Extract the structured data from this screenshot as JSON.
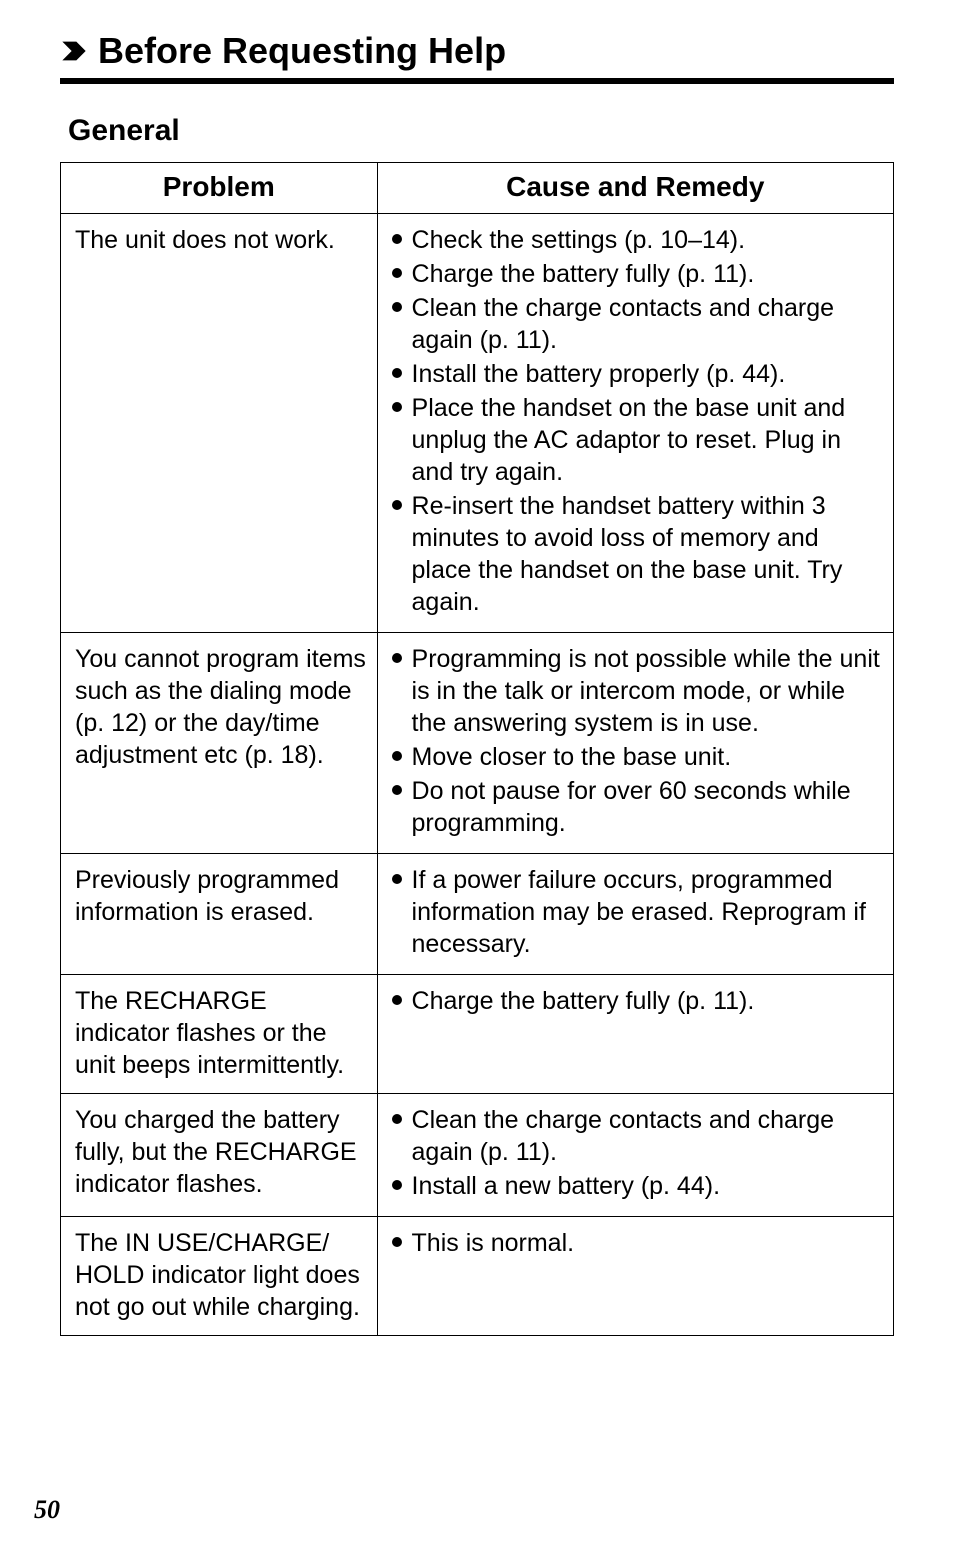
{
  "title": "Before Requesting Help",
  "section_heading": "General",
  "table": {
    "headers": {
      "problem": "Problem",
      "remedy": "Cause and Remedy"
    },
    "rows": [
      {
        "problem": "The unit does not work.",
        "remedies": [
          "Check the settings (p. 10–14).",
          "Charge the battery fully (p. 11).",
          "Clean the charge contacts and charge again (p. 11).",
          "Install the battery properly (p. 44).",
          "Place the handset on the base unit and unplug the AC adaptor to reset. Plug in and try again.",
          "Re-insert the handset battery within 3 minutes to avoid loss of memory and place the handset on the base unit. Try again."
        ]
      },
      {
        "problem": "You cannot program items such as the dialing mode (p. 12) or the day/time adjustment etc (p. 18).",
        "remedies": [
          "Programming is not possible while the unit is in the talk or intercom mode, or while the answering system is in use.",
          "Move closer to the base unit.",
          "Do not pause for over 60 seconds while programming."
        ]
      },
      {
        "problem": "Previously programmed information is erased.",
        "remedies": [
          "If a power failure occurs, programmed information may be erased. Reprogram if necessary."
        ]
      },
      {
        "problem": "The RECHARGE indicator flashes or the unit beeps intermittently.",
        "remedies": [
          "Charge the battery fully (p. 11)."
        ]
      },
      {
        "problem": "You charged the battery fully, but the RECHARGE indicator flashes.",
        "remedies": [
          "Clean the charge contacts and charge again (p. 11).",
          "Install a new battery (p. 44)."
        ]
      },
      {
        "problem": "The IN USE/CHARGE/ HOLD indicator light does not go out while charging.",
        "remedies": [
          "This is normal."
        ]
      }
    ]
  },
  "page_number": "50"
}
